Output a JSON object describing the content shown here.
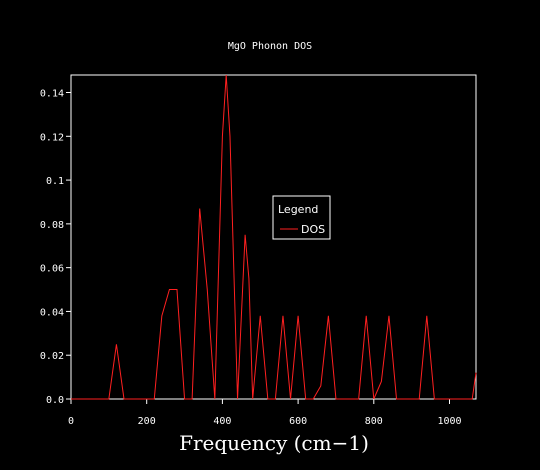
{
  "chart_data": {
    "type": "line",
    "title": "MgO Phonon DOS",
    "xlabel": "Frequency (cm−1)",
    "ylabel": "",
    "xlim": [
      0,
      1070
    ],
    "ylim": [
      0,
      0.148
    ],
    "x_ticks": [
      0,
      200,
      400,
      600,
      800,
      1000
    ],
    "x_tick_labels": [
      "0",
      "200",
      "400",
      "600",
      "800",
      "1000"
    ],
    "y_ticks": [
      0,
      0.02,
      0.04,
      0.06,
      0.08,
      0.1,
      0.12,
      0.14
    ],
    "y_tick_labels": [
      "0.0",
      "0.02",
      "0.04",
      "0.06",
      "0.08",
      "0.1",
      "0.12",
      "0.14"
    ],
    "grid": false,
    "legend": {
      "title": "Legend",
      "placement": "center-right"
    },
    "colors": {
      "background": "#000000",
      "axes": "#ffffff",
      "series": "#ff2020"
    },
    "series": [
      {
        "name": "DOS",
        "x": [
          0,
          100,
          120,
          140,
          220,
          240,
          260,
          280,
          300,
          320,
          340,
          360,
          380,
          400,
          410,
          420,
          440,
          460,
          470,
          480,
          500,
          520,
          540,
          560,
          580,
          600,
          620,
          640,
          660,
          680,
          700,
          760,
          780,
          800,
          820,
          840,
          860,
          920,
          940,
          960,
          1060,
          1070
        ],
        "y": [
          0,
          0,
          0.025,
          0,
          0,
          0.038,
          0.05,
          0.05,
          0,
          0,
          0.087,
          0.05,
          0,
          0.12,
          0.148,
          0.12,
          0,
          0.075,
          0.055,
          0,
          0.038,
          0,
          0,
          0.038,
          0,
          0.038,
          0,
          0,
          0.006,
          0.038,
          0,
          0,
          0.038,
          0,
          0.008,
          0.038,
          0,
          0,
          0.038,
          0,
          0,
          0.012
        ]
      }
    ]
  }
}
